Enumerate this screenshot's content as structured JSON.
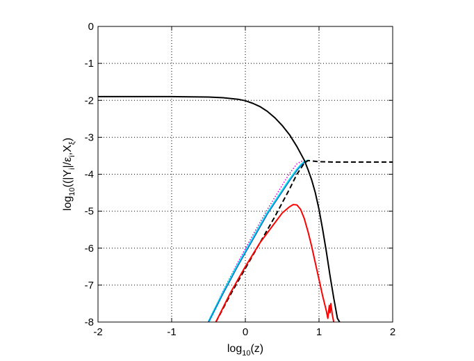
{
  "chart_data": {
    "type": "line",
    "title": "",
    "xlabel": {
      "base": "log",
      "sub": "10",
      "rest": "(z)"
    },
    "ylabel": {
      "base": "log",
      "sub": "10",
      "rest1": "((|Y",
      "sub2": "i",
      "rest2": "|/ε",
      "sub3": "i",
      "rest3": ",X",
      "sub4": "ξ",
      "rest4": ")"
    },
    "xlim": [
      -2,
      2
    ],
    "ylim": [
      -8,
      0
    ],
    "xticks": [
      -2,
      -1,
      0,
      1,
      2
    ],
    "yticks": [
      0,
      -1,
      -2,
      -3,
      -4,
      -5,
      -6,
      -7,
      -8
    ],
    "xtick_labels": [
      "-2",
      "-1",
      "0",
      "1",
      "2"
    ],
    "ytick_labels": [
      "0",
      "-1",
      "-2",
      "-3",
      "-4",
      "-5",
      "-6",
      "-7",
      "-8"
    ],
    "grid": true,
    "series": [
      {
        "name": "black-solid",
        "color": "#000000",
        "style": "solid",
        "x": [
          -2.0,
          -1.5,
          -1.0,
          -0.5,
          -0.3,
          -0.1,
          0.0,
          0.1,
          0.2,
          0.3,
          0.4,
          0.5,
          0.6,
          0.7,
          0.8,
          0.85,
          0.9,
          0.95,
          1.0,
          1.05,
          1.1,
          1.15,
          1.2,
          1.25,
          1.28
        ],
        "y": [
          -1.9,
          -1.9,
          -1.9,
          -1.91,
          -1.93,
          -1.97,
          -2.01,
          -2.08,
          -2.17,
          -2.3,
          -2.47,
          -2.68,
          -2.93,
          -3.25,
          -3.62,
          -3.87,
          -4.15,
          -4.5,
          -4.95,
          -5.5,
          -6.1,
          -6.75,
          -7.35,
          -7.9,
          -8.0
        ]
      },
      {
        "name": "black-dashed",
        "color": "#000000",
        "style": "dashed",
        "x": [
          -0.4,
          -0.2,
          0.0,
          0.2,
          0.4,
          0.6,
          0.7,
          0.8,
          0.85,
          0.9,
          1.0,
          1.2,
          1.5,
          2.0
        ],
        "y": [
          -8.0,
          -7.25,
          -6.55,
          -5.85,
          -5.15,
          -4.4,
          -4.0,
          -3.7,
          -3.63,
          -3.64,
          -3.66,
          -3.67,
          -3.67,
          -3.67
        ]
      },
      {
        "name": "cyan",
        "color": "#00e5ee",
        "style": "solid",
        "x": [
          -0.5,
          -0.3,
          -0.1,
          0.1,
          0.3,
          0.5,
          0.6,
          0.7,
          0.75,
          0.8,
          0.85
        ],
        "y": [
          -8.0,
          -7.2,
          -6.45,
          -5.75,
          -5.05,
          -4.45,
          -4.15,
          -3.88,
          -3.76,
          -3.67,
          -3.63
        ]
      },
      {
        "name": "magenta-dotted",
        "color": "#cc00cc",
        "style": "dotted",
        "x": [
          -0.5,
          -0.3,
          -0.1,
          0.1,
          0.3,
          0.5,
          0.6,
          0.7,
          0.75,
          0.8,
          0.85
        ],
        "y": [
          -8.0,
          -7.15,
          -6.38,
          -5.65,
          -4.95,
          -4.3,
          -3.98,
          -3.72,
          -3.66,
          -3.63,
          -3.63
        ]
      },
      {
        "name": "blue-thin",
        "color": "#1f3fbf",
        "style": "solid",
        "x": [
          -0.5,
          -0.3,
          -0.1,
          0.1,
          0.3,
          0.5,
          0.6,
          0.7,
          0.75,
          0.8
        ],
        "y": [
          -8.0,
          -7.22,
          -6.48,
          -5.78,
          -5.08,
          -4.48,
          -4.18,
          -3.9,
          -3.78,
          -3.68
        ]
      },
      {
        "name": "red",
        "color": "#ff0000",
        "style": "solid",
        "x": [
          -0.4,
          -0.2,
          0.0,
          0.2,
          0.35,
          0.5,
          0.6,
          0.65,
          0.7,
          0.75,
          0.8,
          0.85,
          0.9,
          0.95,
          1.0,
          1.05,
          1.1,
          1.12,
          1.14,
          1.15,
          1.16,
          1.18,
          1.2
        ],
        "y": [
          -8.0,
          -7.2,
          -6.5,
          -5.85,
          -5.45,
          -5.05,
          -4.88,
          -4.82,
          -4.83,
          -4.95,
          -5.2,
          -5.55,
          -5.95,
          -6.4,
          -6.85,
          -7.3,
          -7.7,
          -7.9,
          -7.55,
          -7.75,
          -7.5,
          -7.8,
          -8.0
        ]
      }
    ]
  }
}
